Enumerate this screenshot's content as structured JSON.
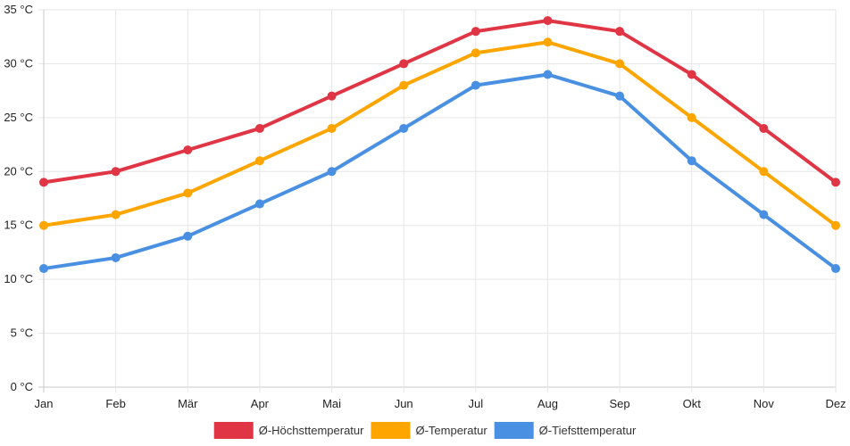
{
  "chart_data": {
    "type": "line",
    "title": "",
    "xlabel": "",
    "ylabel": "",
    "unit_suffix": " °C",
    "ylim": [
      0,
      35
    ],
    "y_ticks": [
      0,
      5,
      10,
      15,
      20,
      25,
      30,
      35
    ],
    "y_tick_labels": [
      "0 °C",
      "5 °C",
      "10 °C",
      "15 °C",
      "20 °C",
      "25 °C",
      "30 °C",
      "35 °C"
    ],
    "grid": true,
    "legend_position": "bottom-center",
    "categories": [
      "Jan",
      "Feb",
      "Mär",
      "Apr",
      "Mai",
      "Jun",
      "Jul",
      "Aug",
      "Sep",
      "Okt",
      "Nov",
      "Dez"
    ],
    "series": [
      {
        "name": "Ø-Höchsttemperatur",
        "color": "#e03545",
        "values": [
          19,
          20,
          22,
          24,
          27,
          30,
          33,
          34,
          33,
          29,
          24,
          19
        ]
      },
      {
        "name": "Ø-Temperatur",
        "color": "#ffa500",
        "values": [
          15,
          16,
          18,
          21,
          24,
          28,
          31,
          32,
          30,
          25,
          20,
          15
        ]
      },
      {
        "name": "Ø-Tiefsttemperatur",
        "color": "#4a90e2",
        "values": [
          11,
          12,
          14,
          17,
          20,
          24,
          28,
          29,
          27,
          21,
          16,
          11
        ]
      }
    ]
  }
}
